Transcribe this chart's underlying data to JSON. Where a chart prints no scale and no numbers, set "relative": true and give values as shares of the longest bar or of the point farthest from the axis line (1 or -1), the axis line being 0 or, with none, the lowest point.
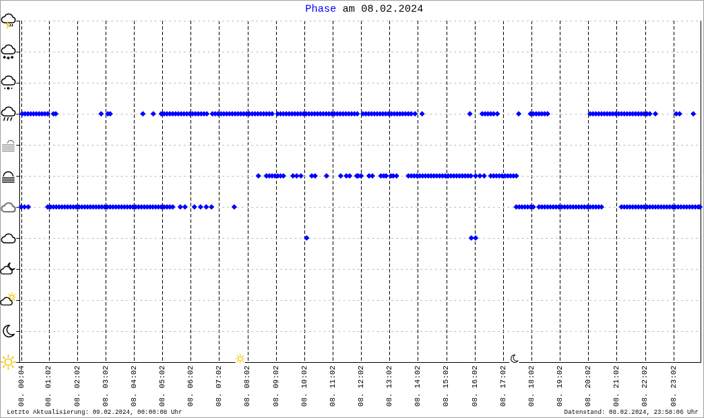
{
  "chart_data": {
    "type": "scatter",
    "title": "am 08.02.2024",
    "legend": "top",
    "relative": true,
    "marker": "diamond",
    "grid": true,
    "xlim": [
      "2024-02-08T00:00",
      "2024-02-09T00:00"
    ],
    "xticks": [
      {
        "value": "2024-02-08T00:04",
        "label": "08. 00:04"
      },
      {
        "value": "2024-02-08T01:02",
        "label": "08. 01:02"
      },
      {
        "value": "2024-02-08T02:02",
        "label": "08. 02:02"
      },
      {
        "value": "2024-02-08T03:02",
        "label": "08. 03:02"
      },
      {
        "value": "2024-02-08T04:02",
        "label": "08. 04:02"
      },
      {
        "value": "2024-02-08T05:02",
        "label": "08. 05:02"
      },
      {
        "value": "2024-02-08T06:02",
        "label": "08. 06:02"
      },
      {
        "value": "2024-02-08T07:02",
        "label": "08. 07:02"
      },
      {
        "value": "2024-02-08T08:02",
        "label": "08. 08:02"
      },
      {
        "value": "2024-02-08T09:02",
        "label": "08. 09:02"
      },
      {
        "value": "2024-02-08T10:02",
        "label": "08. 10:02"
      },
      {
        "value": "2024-02-08T11:02",
        "label": "08. 11:02"
      },
      {
        "value": "2024-02-08T12:02",
        "label": "08. 12:02"
      },
      {
        "value": "2024-02-08T13:02",
        "label": "08. 13:02"
      },
      {
        "value": "2024-02-08T14:02",
        "label": "08. 14:02"
      },
      {
        "value": "2024-02-08T15:02",
        "label": "08. 15:02"
      },
      {
        "value": "2024-02-08T16:02",
        "label": "08. 16:02"
      },
      {
        "value": "2024-02-08T17:02",
        "label": "08. 17:02"
      },
      {
        "value": "2024-02-08T18:02",
        "label": "08. 18:02"
      },
      {
        "value": "2024-02-08T19:02",
        "label": "08. 19:02"
      },
      {
        "value": "2024-02-08T20:02",
        "label": "08. 20:02"
      },
      {
        "value": "2024-02-08T21:02",
        "label": "08. 21:02"
      },
      {
        "value": "2024-02-08T22:02",
        "label": "08. 22:02"
      },
      {
        "value": "2024-02-08T23:02",
        "label": "08. 23:02"
      }
    ],
    "annotations": [
      "Letzte Aktualisierung: 09.02.2024, 00:00:08 Uhr",
      "Datenstand: 08.02.2024, 23:58:06 Uhr"
    ],
    "series": [
      {
        "name": "Phase",
        "color": "#0000ff",
        "x": [
          "2024-02-08T00:06",
          "2024-02-08T00:12",
          "2024-02-08T00:18",
          "2024-02-08T00:24",
          "2024-02-08T00:30",
          "2024-02-08T00:36",
          "2024-02-08T00:42",
          "2024-02-08T00:48",
          "2024-02-08T00:54",
          "2024-02-08T01:00",
          "2024-02-08T01:12",
          "2024-02-08T01:17",
          "2024-02-08T02:53",
          "2024-02-08T03:07",
          "2024-02-08T03:12",
          "2024-02-08T04:21",
          "2024-02-08T04:43",
          "2024-02-08T05:00",
          "2024-02-08T05:06",
          "2024-02-08T05:12",
          "2024-02-08T05:18",
          "2024-02-08T05:24",
          "2024-02-08T05:30",
          "2024-02-08T05:36",
          "2024-02-08T05:42",
          "2024-02-08T05:48",
          "2024-02-08T05:54",
          "2024-02-08T06:00",
          "2024-02-08T06:06",
          "2024-02-08T06:12",
          "2024-02-08T06:18",
          "2024-02-08T06:24",
          "2024-02-08T06:30",
          "2024-02-08T06:36",
          "2024-02-08T06:48",
          "2024-02-08T06:54",
          "2024-02-08T07:00",
          "2024-02-08T07:06",
          "2024-02-08T07:12",
          "2024-02-08T07:18",
          "2024-02-08T07:24",
          "2024-02-08T07:30",
          "2024-02-08T07:36",
          "2024-02-08T07:42",
          "2024-02-08T07:48",
          "2024-02-08T07:54",
          "2024-02-08T08:00",
          "2024-02-08T08:06",
          "2024-02-08T08:12",
          "2024-02-08T08:18",
          "2024-02-08T08:24",
          "2024-02-08T08:30",
          "2024-02-08T08:36",
          "2024-02-08T08:42",
          "2024-02-08T08:48",
          "2024-02-08T08:54",
          "2024-02-08T09:06",
          "2024-02-08T09:12",
          "2024-02-08T09:18",
          "2024-02-08T09:24",
          "2024-02-08T09:30",
          "2024-02-08T09:36",
          "2024-02-08T09:42",
          "2024-02-08T09:48",
          "2024-02-08T09:54",
          "2024-02-08T10:00",
          "2024-02-08T10:06",
          "2024-02-08T10:12",
          "2024-02-08T10:18",
          "2024-02-08T10:24",
          "2024-02-08T10:30",
          "2024-02-08T10:36",
          "2024-02-08T10:42",
          "2024-02-08T10:48",
          "2024-02-08T10:54",
          "2024-02-08T11:00",
          "2024-02-08T11:06",
          "2024-02-08T11:12",
          "2024-02-08T11:18",
          "2024-02-08T11:24",
          "2024-02-08T11:30",
          "2024-02-08T11:36",
          "2024-02-08T11:42",
          "2024-02-08T11:48",
          "2024-02-08T11:54",
          "2024-02-08T12:06",
          "2024-02-08T12:12",
          "2024-02-08T12:18",
          "2024-02-08T12:24",
          "2024-02-08T12:30",
          "2024-02-08T12:36",
          "2024-02-08T12:42",
          "2024-02-08T12:48",
          "2024-02-08T12:54",
          "2024-02-08T13:00",
          "2024-02-08T13:06",
          "2024-02-08T13:12",
          "2024-02-08T13:18",
          "2024-02-08T13:24",
          "2024-02-08T13:30",
          "2024-02-08T13:36",
          "2024-02-08T13:42",
          "2024-02-08T13:48",
          "2024-02-08T13:56",
          "2024-02-08T14:11",
          "2024-02-08T15:52",
          "2024-02-08T16:18",
          "2024-02-08T16:24",
          "2024-02-08T16:30",
          "2024-02-08T16:36",
          "2024-02-08T16:42",
          "2024-02-08T16:50",
          "2024-02-08T17:35",
          "2024-02-08T18:00",
          "2024-02-08T18:06",
          "2024-02-08T18:12",
          "2024-02-08T18:18",
          "2024-02-08T18:24",
          "2024-02-08T18:30",
          "2024-02-08T18:36",
          "2024-02-08T20:06",
          "2024-02-08T20:12",
          "2024-02-08T20:18",
          "2024-02-08T20:24",
          "2024-02-08T20:30",
          "2024-02-08T20:36",
          "2024-02-08T20:42",
          "2024-02-08T20:48",
          "2024-02-08T20:54",
          "2024-02-08T21:00",
          "2024-02-08T21:06",
          "2024-02-08T21:12",
          "2024-02-08T21:18",
          "2024-02-08T21:24",
          "2024-02-08T21:30",
          "2024-02-08T21:36",
          "2024-02-08T21:42",
          "2024-02-08T21:48",
          "2024-02-08T21:54",
          "2024-02-08T22:00",
          "2024-02-08T22:06",
          "2024-02-08T22:12",
          "2024-02-08T22:24",
          "2024-02-08T23:08",
          "2024-02-08T23:15",
          "2024-02-08T23:44",
          "2024-02-08T08:25",
          "2024-02-08T08:42",
          "2024-02-08T08:48",
          "2024-02-08T08:54",
          "2024-02-08T09:00",
          "2024-02-08T09:06",
          "2024-02-08T09:12",
          "2024-02-08T09:18",
          "2024-02-08T09:38",
          "2024-02-08T09:46",
          "2024-02-08T09:55",
          "2024-02-08T10:18",
          "2024-02-08T10:25",
          "2024-02-08T10:49",
          "2024-02-08T11:19",
          "2024-02-08T11:31",
          "2024-02-08T11:38",
          "2024-02-08T11:53",
          "2024-02-08T11:56",
          "2024-02-08T12:02",
          "2024-02-08T12:19",
          "2024-02-08T12:26",
          "2024-02-08T12:44",
          "2024-02-08T12:50",
          "2024-02-08T12:55",
          "2024-02-08T13:05",
          "2024-02-08T13:10",
          "2024-02-08T13:17",
          "2024-02-08T13:42",
          "2024-02-08T13:48",
          "2024-02-08T13:54",
          "2024-02-08T14:00",
          "2024-02-08T14:06",
          "2024-02-08T14:12",
          "2024-02-08T14:18",
          "2024-02-08T14:24",
          "2024-02-08T14:30",
          "2024-02-08T14:36",
          "2024-02-08T14:42",
          "2024-02-08T14:48",
          "2024-02-08T14:54",
          "2024-02-08T15:00",
          "2024-02-08T15:06",
          "2024-02-08T15:12",
          "2024-02-08T15:18",
          "2024-02-08T15:24",
          "2024-02-08T15:30",
          "2024-02-08T15:36",
          "2024-02-08T15:42",
          "2024-02-08T15:48",
          "2024-02-08T15:54",
          "2024-02-08T16:04",
          "2024-02-08T16:13",
          "2024-02-08T16:22",
          "2024-02-08T16:36",
          "2024-02-08T16:42",
          "2024-02-08T16:48",
          "2024-02-08T16:54",
          "2024-02-08T17:00",
          "2024-02-08T17:06",
          "2024-02-08T17:12",
          "2024-02-08T17:18",
          "2024-02-08T17:24",
          "2024-02-08T17:30",
          "2024-02-08T00:04",
          "2024-02-08T00:11",
          "2024-02-08T00:19",
          "2024-02-08T01:00",
          "2024-02-08T01:06",
          "2024-02-08T01:12",
          "2024-02-08T01:18",
          "2024-02-08T01:24",
          "2024-02-08T01:30",
          "2024-02-08T01:36",
          "2024-02-08T01:42",
          "2024-02-08T01:48",
          "2024-02-08T01:54",
          "2024-02-08T02:00",
          "2024-02-08T02:06",
          "2024-02-08T02:12",
          "2024-02-08T02:18",
          "2024-02-08T02:24",
          "2024-02-08T02:30",
          "2024-02-08T02:36",
          "2024-02-08T02:42",
          "2024-02-08T02:48",
          "2024-02-08T02:54",
          "2024-02-08T03:00",
          "2024-02-08T03:06",
          "2024-02-08T03:12",
          "2024-02-08T03:18",
          "2024-02-08T03:24",
          "2024-02-08T03:30",
          "2024-02-08T03:36",
          "2024-02-08T03:42",
          "2024-02-08T03:48",
          "2024-02-08T03:54",
          "2024-02-08T04:00",
          "2024-02-08T04:06",
          "2024-02-08T04:12",
          "2024-02-08T04:18",
          "2024-02-08T04:24",
          "2024-02-08T04:30",
          "2024-02-08T04:36",
          "2024-02-08T04:42",
          "2024-02-08T04:48",
          "2024-02-08T04:54",
          "2024-02-08T05:00",
          "2024-02-08T05:06",
          "2024-02-08T05:12",
          "2024-02-08T05:18",
          "2024-02-08T05:24",
          "2024-02-08T05:40",
          "2024-02-08T05:50",
          "2024-02-08T06:10",
          "2024-02-08T06:23",
          "2024-02-08T06:35",
          "2024-02-08T06:46",
          "2024-02-08T07:34",
          "2024-02-08T17:30",
          "2024-02-08T17:36",
          "2024-02-08T17:42",
          "2024-02-08T17:48",
          "2024-02-08T17:54",
          "2024-02-08T18:00",
          "2024-02-08T18:06",
          "2024-02-08T18:18",
          "2024-02-08T18:24",
          "2024-02-08T18:30",
          "2024-02-08T18:36",
          "2024-02-08T18:42",
          "2024-02-08T18:48",
          "2024-02-08T18:54",
          "2024-02-08T19:00",
          "2024-02-08T19:06",
          "2024-02-08T19:12",
          "2024-02-08T19:18",
          "2024-02-08T19:24",
          "2024-02-08T19:30",
          "2024-02-08T19:36",
          "2024-02-08T19:42",
          "2024-02-08T19:48",
          "2024-02-08T19:54",
          "2024-02-08T20:00",
          "2024-02-08T20:06",
          "2024-02-08T20:12",
          "2024-02-08T20:18",
          "2024-02-08T20:24",
          "2024-02-08T20:30",
          "2024-02-08T21:12",
          "2024-02-08T21:18",
          "2024-02-08T21:24",
          "2024-02-08T21:30",
          "2024-02-08T21:36",
          "2024-02-08T21:42",
          "2024-02-08T21:48",
          "2024-02-08T21:54",
          "2024-02-08T22:00",
          "2024-02-08T22:06",
          "2024-02-08T22:12",
          "2024-02-08T22:18",
          "2024-02-08T22:24",
          "2024-02-08T22:30",
          "2024-02-08T22:36",
          "2024-02-08T22:42",
          "2024-02-08T22:48",
          "2024-02-08T22:54",
          "2024-02-08T23:00",
          "2024-02-08T23:06",
          "2024-02-08T23:12",
          "2024-02-08T23:18",
          "2024-02-08T23:24",
          "2024-02-08T23:30",
          "2024-02-08T23:36",
          "2024-02-08T23:42",
          "2024-02-08T23:48",
          "2024-02-08T23:54",
          "2024-02-08T23:58",
          "2024-02-08T10:07",
          "2024-02-08T15:55",
          "2024-02-08T16:04"
        ],
        "values": [
          1,
          1,
          1,
          1,
          1,
          1,
          1,
          1,
          1,
          1,
          1,
          1,
          1,
          1,
          1,
          1,
          1,
          1,
          1,
          1,
          1,
          1,
          1,
          1,
          1,
          1,
          1,
          1,
          1,
          1,
          1,
          1,
          1,
          1,
          1,
          1,
          1,
          1,
          1,
          1,
          1,
          1,
          1,
          1,
          1,
          1,
          1,
          1,
          1,
          1,
          1,
          1,
          1,
          1,
          1,
          1,
          1,
          1,
          1,
          1,
          1,
          1,
          1,
          1,
          1,
          1,
          1,
          1,
          1,
          1,
          1,
          1,
          1,
          1,
          1,
          1,
          1,
          1,
          1,
          1,
          1,
          1,
          1,
          1,
          1,
          1,
          1,
          1,
          1,
          1,
          1,
          1,
          1,
          1,
          1,
          1,
          1,
          1,
          1,
          1,
          1,
          1,
          1,
          1,
          1,
          1,
          1,
          1,
          1,
          1,
          1,
          1,
          1,
          1,
          1,
          1,
          1,
          1,
          1,
          1,
          1,
          1,
          1,
          1,
          1,
          1,
          1,
          1,
          1,
          1,
          1,
          1,
          1,
          1,
          1,
          1,
          1,
          1,
          1,
          1,
          1,
          1,
          1,
          1,
          1,
          1,
          0.75,
          0.75,
          0.75,
          0.75,
          0.75,
          0.75,
          0.75,
          0.75,
          0.75,
          0.75,
          0.75,
          0.75,
          0.75,
          0.75,
          0.75,
          0.75,
          0.75,
          0.75,
          0.75,
          0.75,
          0.75,
          0.75,
          0.75,
          0.75,
          0.75,
          0.75,
          0.75,
          0.75,
          0.75,
          0.75,
          0.75,
          0.75,
          0.75,
          0.75,
          0.75,
          0.75,
          0.75,
          0.75,
          0.75,
          0.75,
          0.75,
          0.75,
          0.75,
          0.75,
          0.75,
          0.75,
          0.75,
          0.75,
          0.75,
          0.75,
          0.75,
          0.75,
          0.75,
          0.75,
          0.75,
          0.75,
          0.75,
          0.75,
          0.75,
          0.75,
          0.75,
          0.75,
          0.75,
          0.75,
          0.625,
          0.625,
          0.625,
          0.625,
          0.625,
          0.625,
          0.625,
          0.625,
          0.625,
          0.625,
          0.625,
          0.625,
          0.625,
          0.625,
          0.625,
          0.625,
          0.625,
          0.625,
          0.625,
          0.625,
          0.625,
          0.625,
          0.625,
          0.625,
          0.625,
          0.625,
          0.625,
          0.625,
          0.625,
          0.625,
          0.625,
          0.625,
          0.625,
          0.625,
          0.625,
          0.625,
          0.625,
          0.625,
          0.625,
          0.625,
          0.625,
          0.625,
          0.625,
          0.625,
          0.625,
          0.625,
          0.625,
          0.625,
          0.625,
          0.625,
          0.625,
          0.625,
          0.625,
          0.625,
          0.625,
          0.625,
          0.625,
          0.625,
          0.625,
          0.625,
          0.625,
          0.625,
          0.625,
          0.625,
          0.625,
          0.625,
          0.625,
          0.625,
          0.625,
          0.625,
          0.625,
          0.625,
          0.625,
          0.625,
          0.625,
          0.625,
          0.625,
          0.625,
          0.625,
          0.625,
          0.625,
          0.625,
          0.625,
          0.625,
          0.625,
          0.625,
          0.625,
          0.625,
          0.625,
          0.625,
          0.625,
          0.625,
          0.625,
          0.625,
          0.625,
          0.625,
          0.625,
          0.625,
          0.625,
          0.625,
          0.625,
          0.625,
          0.625,
          0.625,
          0.625,
          0.625,
          0.625,
          0.625,
          0.625,
          0.625,
          0.625,
          0.625,
          0.625,
          0.625,
          0.5,
          0.5,
          0.5
        ]
      }
    ]
  }
}
